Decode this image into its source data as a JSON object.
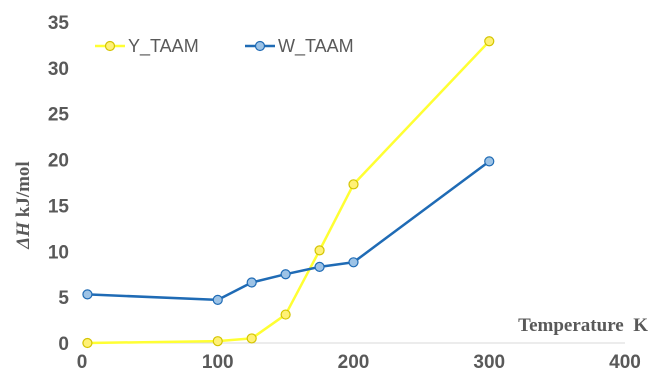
{
  "chart_data": {
    "type": "line",
    "title": "",
    "xlabel": "Temperature  K",
    "ylabel_symbol": "ΔH",
    "ylabel_unit": " kJ/mol",
    "xlim": [
      0,
      400
    ],
    "ylim": [
      0,
      35
    ],
    "xticks": [
      0,
      100,
      200,
      300,
      400
    ],
    "yticks": [
      0,
      5,
      10,
      15,
      20,
      25,
      30,
      35
    ],
    "grid": false,
    "legend_position": "top-left",
    "series": [
      {
        "name": "Y_TAAM",
        "color": "#FFFF33",
        "marker_fill": "#FFF176",
        "marker_stroke": "#D4C400",
        "x": [
          4,
          100,
          125,
          150,
          175,
          200,
          300
        ],
        "y": [
          0.0,
          0.2,
          0.5,
          3.1,
          10.1,
          17.3,
          32.9
        ]
      },
      {
        "name": "W_TAAM",
        "color": "#1F6BB5",
        "marker_fill": "#9DC3E6",
        "marker_stroke": "#1F6BB5",
        "x": [
          4,
          100,
          125,
          150,
          175,
          200,
          300
        ],
        "y": [
          5.3,
          4.7,
          6.6,
          7.5,
          8.3,
          8.8,
          19.8
        ]
      }
    ]
  }
}
